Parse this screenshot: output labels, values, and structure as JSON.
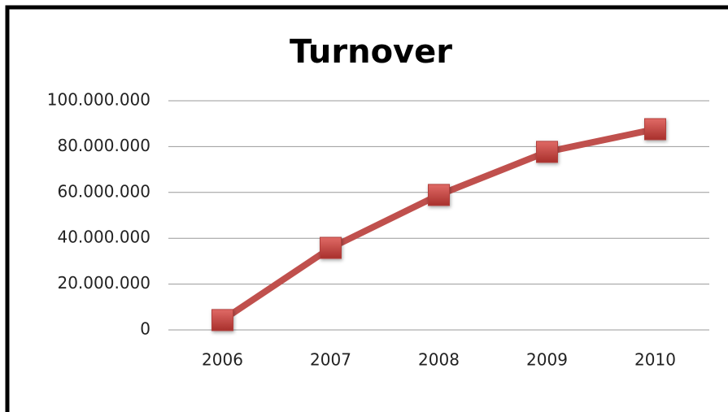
{
  "chart_data": {
    "type": "line",
    "title": "Turnover",
    "categories": [
      "2006",
      "2007",
      "2008",
      "2009",
      "2010"
    ],
    "series": [
      {
        "name": "Turnover",
        "color": "#c0504d",
        "values": [
          4300000,
          35800000,
          58900000,
          77700000,
          87600000
        ]
      }
    ],
    "ylim": [
      0,
      100000000
    ],
    "yticks": [
      0,
      {
        "value": 20000000,
        "label": "20.000.000"
      },
      {
        "value": 40000000,
        "label": "40.000.000"
      },
      {
        "value": 60000000,
        "label": "60.000.000"
      },
      {
        "value": 80000000,
        "label": "80.000.000"
      },
      {
        "value": 100000000,
        "label": "100.000.000"
      }
    ],
    "grid": true
  }
}
